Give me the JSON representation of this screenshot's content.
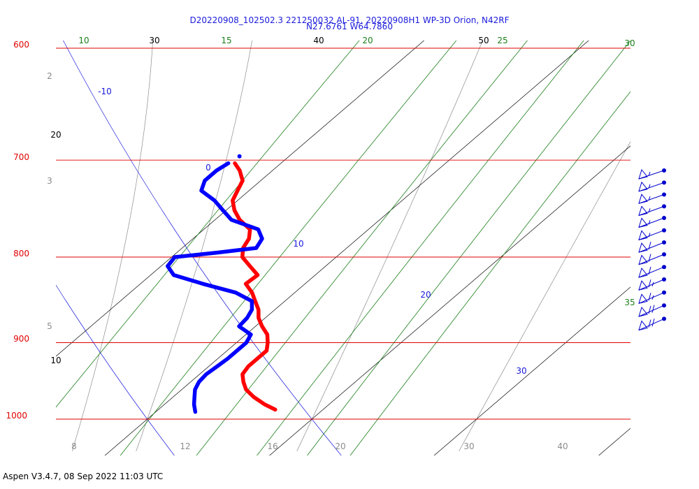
{
  "header": {
    "line1": "D20220908_102502.3 221250032 AL-91, 20220908H1 WP-3D Orion, N42RF",
    "line2": "N27.6761 W64.7860"
  },
  "footer": {
    "text": "Aspen V3.4.7, 08 Sep 2022  11:03 UTC"
  },
  "colors": {
    "isobar": "#e00000",
    "isotherm": "#000000",
    "mixing_ratio": "#1b7f1b",
    "dry_adiabat": "#1a1adc",
    "moist_adiabat": "#8c8c8c",
    "temperature_trace": "#ff0000",
    "dewpoint_trace": "#0000ff",
    "wind_barbs": "#0000cc"
  },
  "chart_data": {
    "type": "line",
    "chart_kind": "skew-t log-p thermodynamic diagram",
    "pressure_axis": {
      "unit": "hPa",
      "scale": "log",
      "range": [
        1045,
        600
      ],
      "labels": [
        "600",
        "700",
        "800",
        "900",
        "1000"
      ]
    },
    "isotherms": {
      "labels": [
        "10",
        "20",
        "30",
        "40",
        "50"
      ]
    },
    "mixing_ratio_lines": {
      "labels": [
        "10",
        "15",
        "20",
        "25",
        "30",
        "35"
      ]
    },
    "dry_adiabats": {
      "labels": [
        "-10",
        "0",
        "10",
        "20",
        "30"
      ]
    },
    "moist_adiabats": {
      "labels": [
        "2",
        "3",
        "5",
        "8",
        "12",
        "16",
        "20",
        "30",
        "40"
      ]
    },
    "series": [
      {
        "role": "temperature",
        "points": [
          {
            "p": 987,
            "t": 27.1
          },
          {
            "p": 980,
            "t": 26.1
          },
          {
            "p": 970,
            "t": 24.9
          },
          {
            "p": 960,
            "t": 23.9
          },
          {
            "p": 950,
            "t": 23.2
          },
          {
            "p": 940,
            "t": 22.6
          },
          {
            "p": 930,
            "t": 22.4
          },
          {
            "p": 920,
            "t": 22.4
          },
          {
            "p": 910,
            "t": 22.4
          },
          {
            "p": 900,
            "t": 21.9
          },
          {
            "p": 890,
            "t": 21.3
          },
          {
            "p": 880,
            "t": 20.4
          },
          {
            "p": 870,
            "t": 19.6
          },
          {
            "p": 860,
            "t": 19.0
          },
          {
            "p": 850,
            "t": 18.2
          },
          {
            "p": 840,
            "t": 17.4
          },
          {
            "p": 830,
            "t": 16.4
          },
          {
            "p": 820,
            "t": 16.5
          },
          {
            "p": 810,
            "t": 15.4
          },
          {
            "p": 800,
            "t": 14.3
          },
          {
            "p": 790,
            "t": 13.7
          },
          {
            "p": 780,
            "t": 13.4
          },
          {
            "p": 770,
            "t": 12.8
          },
          {
            "p": 760,
            "t": 11.5
          },
          {
            "p": 750,
            "t": 10.5
          },
          {
            "p": 740,
            "t": 9.7
          },
          {
            "p": 730,
            "t": 9.3
          },
          {
            "p": 720,
            "t": 8.9
          },
          {
            "p": 710,
            "t": 8.0
          },
          {
            "p": 703,
            "t": 7.2
          }
        ]
      },
      {
        "role": "dewpoint",
        "points": [
          {
            "p": 990,
            "t": 22.4
          },
          {
            "p": 980,
            "t": 21.8
          },
          {
            "p": 970,
            "t": 21.3
          },
          {
            "p": 960,
            "t": 20.8
          },
          {
            "p": 950,
            "t": 20.5
          },
          {
            "p": 940,
            "t": 20.4
          },
          {
            "p": 930,
            "t": 20.5
          },
          {
            "p": 920,
            "t": 20.6
          },
          {
            "p": 910,
            "t": 20.6
          },
          {
            "p": 900,
            "t": 20.6
          },
          {
            "p": 890,
            "t": 20.3
          },
          {
            "p": 880,
            "t": 19.0
          },
          {
            "p": 870,
            "t": 18.9
          },
          {
            "p": 860,
            "t": 18.6
          },
          {
            "p": 850,
            "t": 18.0
          },
          {
            "p": 840,
            "t": 16.4
          },
          {
            "p": 830,
            "t": 13.8
          },
          {
            "p": 820,
            "t": 11.4
          },
          {
            "p": 810,
            "t": 10.4
          },
          {
            "p": 800,
            "t": 10.2
          },
          {
            "p": 795,
            "t": 12.5
          },
          {
            "p": 790,
            "t": 14.5
          },
          {
            "p": 780,
            "t": 14.2
          },
          {
            "p": 770,
            "t": 13.3
          },
          {
            "p": 760,
            "t": 11.0
          },
          {
            "p": 750,
            "t": 9.8
          },
          {
            "p": 740,
            "t": 8.6
          },
          {
            "p": 730,
            "t": 7.1
          },
          {
            "p": 720,
            "t": 6.6
          },
          {
            "p": 710,
            "t": 6.6
          },
          {
            "p": 703,
            "t": 6.8
          }
        ]
      }
    ],
    "wind_barbs": [
      {
        "p": 710,
        "speed_kt": 15
      },
      {
        "p": 722,
        "speed_kt": 15
      },
      {
        "p": 734,
        "speed_kt": 15
      },
      {
        "p": 746,
        "speed_kt": 15
      },
      {
        "p": 758,
        "speed_kt": 15
      },
      {
        "p": 771,
        "speed_kt": 15
      },
      {
        "p": 784,
        "speed_kt": 20
      },
      {
        "p": 797,
        "speed_kt": 20
      },
      {
        "p": 811,
        "speed_kt": 20
      },
      {
        "p": 825,
        "speed_kt": 25
      },
      {
        "p": 840,
        "speed_kt": 25
      },
      {
        "p": 855,
        "speed_kt": 30
      },
      {
        "p": 871,
        "speed_kt": 30
      }
    ]
  }
}
